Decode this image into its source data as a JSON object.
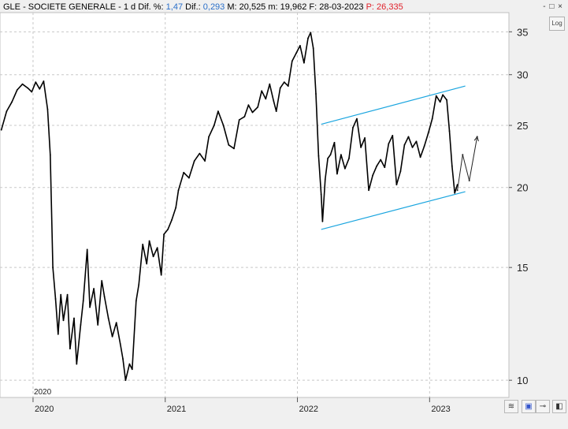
{
  "header": {
    "ticker": "GLE - SOCIETE GENERALE -",
    "period": "1 d",
    "dif_pct_label": "Dif. %:",
    "dif_pct": "1,47",
    "dif_label": "Dif.:",
    "dif": "0,293",
    "max_label": "M:",
    "max": "20,525",
    "min_label": "m:",
    "min": "19,962",
    "date_label": "F:",
    "date": "28-03-2023",
    "price_label": "P:",
    "price": "26,335"
  },
  "window_controls": "- □ ×",
  "log_button": "Log",
  "colors": {
    "price": "#000000",
    "channel": "#1aa5df",
    "grid": "#c8c8c8",
    "plot_bg": "#ffffff",
    "chrome": "#f0f0f0"
  },
  "chart_data": {
    "type": "line",
    "scale": "log",
    "title": "GLE - SOCIETE GENERALE -",
    "xlabel": "",
    "ylabel": "",
    "xlim": [
      2019.75,
      2023.6
    ],
    "ylim": [
      9.4,
      37.5
    ],
    "y_ticks": [
      10,
      15,
      20,
      25,
      30,
      35
    ],
    "x_ticks": [
      2020,
      2021,
      2022,
      2023
    ],
    "x_tick_labels": [
      "2020",
      "2021",
      "2022",
      "2023"
    ],
    "marker_label": "2020",
    "grid": true,
    "series": [
      {
        "points": [
          [
            2019.76,
            24.6
          ],
          [
            2019.8,
            26.3
          ],
          [
            2019.84,
            27.2
          ],
          [
            2019.88,
            28.4
          ],
          [
            2019.92,
            29.0
          ],
          [
            2019.96,
            28.6
          ],
          [
            2019.99,
            28.2
          ],
          [
            2020.02,
            29.2
          ],
          [
            2020.05,
            28.5
          ],
          [
            2020.08,
            29.3
          ],
          [
            2020.11,
            26.5
          ],
          [
            2020.13,
            22.5
          ],
          [
            2020.15,
            15.0
          ],
          [
            2020.17,
            13.4
          ],
          [
            2020.19,
            11.8
          ],
          [
            2020.21,
            13.6
          ],
          [
            2020.23,
            12.4
          ],
          [
            2020.26,
            13.6
          ],
          [
            2020.28,
            11.2
          ],
          [
            2020.31,
            12.5
          ],
          [
            2020.33,
            10.6
          ],
          [
            2020.36,
            12.2
          ],
          [
            2020.38,
            13.3
          ],
          [
            2020.41,
            16.0
          ],
          [
            2020.43,
            13.0
          ],
          [
            2020.46,
            13.9
          ],
          [
            2020.49,
            12.2
          ],
          [
            2020.52,
            14.3
          ],
          [
            2020.54,
            13.5
          ],
          [
            2020.57,
            12.5
          ],
          [
            2020.6,
            11.7
          ],
          [
            2020.63,
            12.3
          ],
          [
            2020.66,
            11.4
          ],
          [
            2020.68,
            10.8
          ],
          [
            2020.7,
            10.0
          ],
          [
            2020.73,
            10.6
          ],
          [
            2020.75,
            10.4
          ],
          [
            2020.78,
            13.3
          ],
          [
            2020.8,
            14.1
          ],
          [
            2020.83,
            16.3
          ],
          [
            2020.86,
            15.2
          ],
          [
            2020.88,
            16.5
          ],
          [
            2020.91,
            15.6
          ],
          [
            2020.94,
            16.1
          ],
          [
            2020.97,
            14.6
          ],
          [
            2020.99,
            16.9
          ],
          [
            2021.02,
            17.2
          ],
          [
            2021.05,
            17.8
          ],
          [
            2021.08,
            18.6
          ],
          [
            2021.1,
            19.8
          ],
          [
            2021.14,
            21.1
          ],
          [
            2021.18,
            20.7
          ],
          [
            2021.22,
            22.0
          ],
          [
            2021.26,
            22.6
          ],
          [
            2021.3,
            22.0
          ],
          [
            2021.33,
            24.0
          ],
          [
            2021.37,
            25.0
          ],
          [
            2021.4,
            26.3
          ],
          [
            2021.44,
            25.0
          ],
          [
            2021.48,
            23.3
          ],
          [
            2021.52,
            23.0
          ],
          [
            2021.56,
            25.5
          ],
          [
            2021.6,
            25.8
          ],
          [
            2021.63,
            26.9
          ],
          [
            2021.66,
            26.2
          ],
          [
            2021.7,
            26.7
          ],
          [
            2021.73,
            28.3
          ],
          [
            2021.76,
            27.5
          ],
          [
            2021.79,
            29.0
          ],
          [
            2021.82,
            27.3
          ],
          [
            2021.84,
            26.3
          ],
          [
            2021.87,
            28.6
          ],
          [
            2021.9,
            29.2
          ],
          [
            2021.93,
            28.8
          ],
          [
            2021.96,
            31.5
          ],
          [
            2021.99,
            32.4
          ],
          [
            2022.02,
            33.3
          ],
          [
            2022.05,
            31.3
          ],
          [
            2022.08,
            34.2
          ],
          [
            2022.1,
            34.9
          ],
          [
            2022.12,
            33.0
          ],
          [
            2022.14,
            28.0
          ],
          [
            2022.16,
            22.4
          ],
          [
            2022.18,
            19.5
          ],
          [
            2022.19,
            17.7
          ],
          [
            2022.21,
            20.6
          ],
          [
            2022.23,
            22.2
          ],
          [
            2022.25,
            22.5
          ],
          [
            2022.28,
            23.5
          ],
          [
            2022.3,
            21.0
          ],
          [
            2022.33,
            22.5
          ],
          [
            2022.36,
            21.4
          ],
          [
            2022.39,
            22.2
          ],
          [
            2022.42,
            24.8
          ],
          [
            2022.45,
            25.6
          ],
          [
            2022.48,
            23.1
          ],
          [
            2022.51,
            23.9
          ],
          [
            2022.54,
            19.8
          ],
          [
            2022.57,
            20.9
          ],
          [
            2022.6,
            21.6
          ],
          [
            2022.63,
            22.1
          ],
          [
            2022.66,
            21.5
          ],
          [
            2022.69,
            23.4
          ],
          [
            2022.72,
            24.1
          ],
          [
            2022.75,
            20.2
          ],
          [
            2022.78,
            21.2
          ],
          [
            2022.81,
            23.3
          ],
          [
            2022.84,
            24.0
          ],
          [
            2022.87,
            23.1
          ],
          [
            2022.9,
            23.6
          ],
          [
            2022.93,
            22.3
          ],
          [
            2022.96,
            23.2
          ],
          [
            2022.99,
            24.3
          ],
          [
            2023.02,
            25.6
          ],
          [
            2023.05,
            27.8
          ],
          [
            2023.08,
            27.2
          ],
          [
            2023.1,
            27.9
          ],
          [
            2023.13,
            27.4
          ],
          [
            2023.15,
            24.5
          ],
          [
            2023.17,
            21.6
          ],
          [
            2023.19,
            19.6
          ],
          [
            2023.21,
            20.2
          ]
        ]
      },
      {
        "points": [
          [
            2023.21,
            19.8
          ],
          [
            2023.25,
            22.5
          ],
          [
            2023.3,
            20.5
          ],
          [
            2023.36,
            24.0
          ]
        ]
      }
    ],
    "channel_lines": [
      [
        [
          2022.18,
          25.1
        ],
        [
          2023.27,
          28.8
        ]
      ],
      [
        [
          2022.18,
          17.2
        ],
        [
          2023.27,
          19.7
        ]
      ]
    ]
  }
}
